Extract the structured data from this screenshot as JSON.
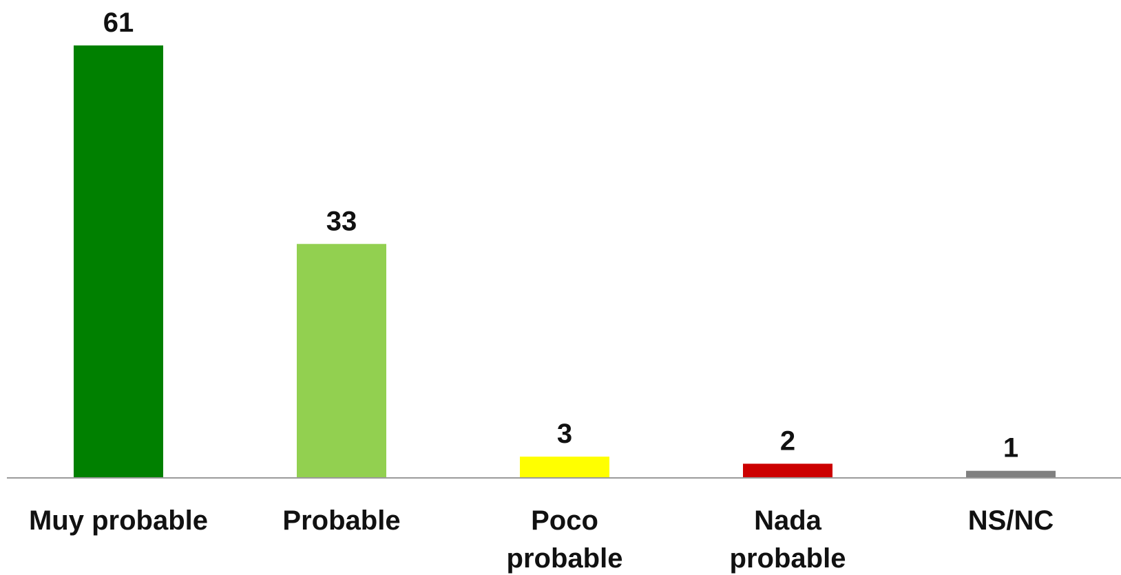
{
  "chart_data": {
    "type": "bar",
    "categories": [
      "Muy probable",
      "Probable",
      "Poco probable",
      "Nada probable",
      "NS/NC"
    ],
    "category_lines": [
      [
        "Muy probable"
      ],
      [
        "Probable"
      ],
      [
        "Poco",
        "probable"
      ],
      [
        "Nada",
        "probable"
      ],
      [
        "NS/NC"
      ]
    ],
    "values": [
      61,
      33,
      3,
      2,
      1
    ],
    "colors": [
      "#008000",
      "#92d050",
      "#ffff00",
      "#cc0000",
      "#808080"
    ],
    "title": "",
    "xlabel": "",
    "ylabel": "",
    "ylim": [
      0,
      61
    ],
    "grid": false,
    "legend": "none",
    "data_labels": true
  }
}
